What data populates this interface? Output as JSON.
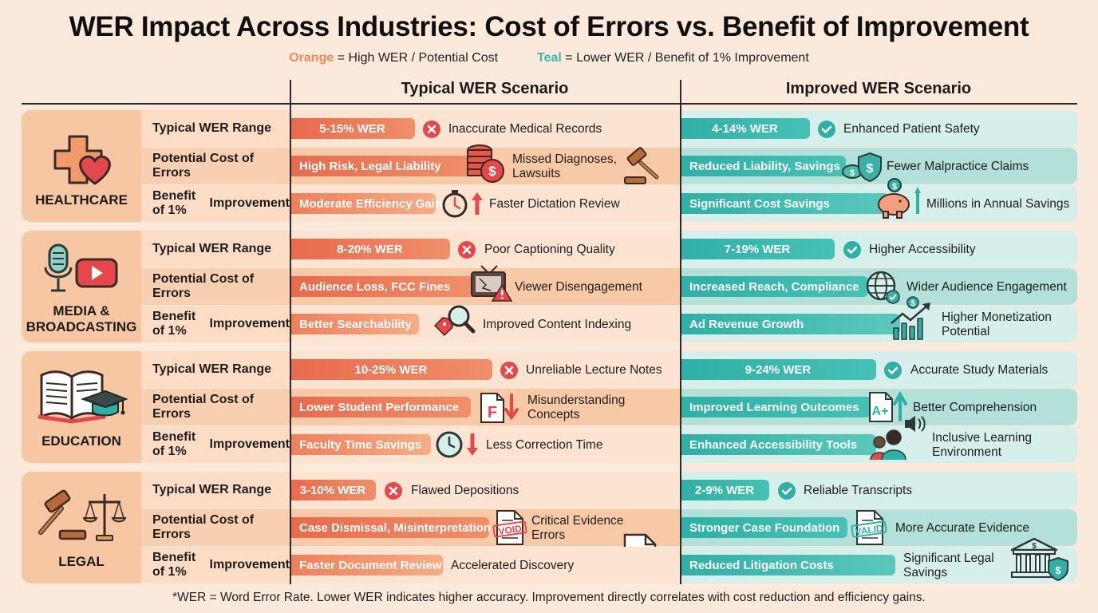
{
  "title": "WER Impact Across Industries: Cost of Errors vs. Benefit of Improvement",
  "legend": {
    "orange_key": "Orange",
    "orange_text": "= High WER / Potential Cost",
    "teal_key": "Teal",
    "teal_text": "= Lower WER / Benefit of 1% Improvement",
    "orange_color": "#ef8a5a",
    "teal_color": "#3cb7ad"
  },
  "columns": {
    "typical": "Typical WER Scenario",
    "improved": "Improved WER Scenario"
  },
  "row_labels": {
    "range": "Typical WER Range",
    "cost": "Potential Cost of Errors",
    "benefit_l1": "Benefit of 1%",
    "benefit_l2": "Improvement"
  },
  "sections": [
    {
      "name": "HEALTHCARE",
      "range": {
        "typical": "5-15% WER",
        "typical_note": "Inaccurate Medical Records",
        "improved": "4-14% WER",
        "improved_note": "Enhanced Patient Safety"
      },
      "cost": {
        "typical": "High Risk, Legal Liability",
        "typical_note_l1": "Missed Diagnoses,",
        "typical_note_l2": "Lawsuits",
        "improved": "Reduced Liability, Savings",
        "improved_note": "Fewer Malpractice Claims"
      },
      "benefit": {
        "typical": "Moderate Efficiency Gain",
        "typical_note": "Faster Dictation Review",
        "improved": "Significant Cost Savings",
        "improved_note": "Millions in Annual Savings"
      }
    },
    {
      "name_l1": "MEDIA &",
      "name_l2": "BROADCASTING",
      "range": {
        "typical": "8-20% WER",
        "typical_note": "Poor Captioning Quality",
        "improved": "7-19% WER",
        "improved_note": "Higher Accessibility"
      },
      "cost": {
        "typical": "Audience Loss, FCC Fines",
        "typical_note": "Viewer Disengagement",
        "improved": "Increased Reach, Compliance",
        "improved_note": "Wider Audience Engagement"
      },
      "benefit": {
        "typical": "Better Searchability",
        "typical_note": "Improved Content Indexing",
        "improved": "Ad Revenue Growth",
        "improved_note_l1": "Higher Monetization",
        "improved_note_l2": "Potential"
      }
    },
    {
      "name": "EDUCATION",
      "range": {
        "typical": "10-25% WER",
        "typical_note": "Unreliable Lecture Notes",
        "improved": "9-24% WER",
        "improved_note": "Accurate Study Materials"
      },
      "cost": {
        "typical": "Lower Student Performance",
        "typical_note_l1": "Misunderstanding",
        "typical_note_l2": "Concepts",
        "improved": "Improved Learning Outcomes",
        "improved_note": "Better Comprehension"
      },
      "benefit": {
        "typical": "Faculty Time Savings",
        "typical_note": "Less Correction Time",
        "improved": "Enhanced Accessibility Tools",
        "improved_note_l1": "Inclusive Learning",
        "improved_note_l2": "Environment"
      }
    },
    {
      "name": "LEGAL",
      "range": {
        "typical": "3-10% WER",
        "typical_note": "Flawed Depositions",
        "improved": "2-9% WER",
        "improved_note": "Reliable Transcripts"
      },
      "cost": {
        "typical": "Case Dismissal, Misinterpretation",
        "typical_note_l1": "Critical Evidence",
        "typical_note_l2": "Errors",
        "stamp_typical": "VOID",
        "improved": "Stronger Case Foundation",
        "improved_note": "More Accurate Evidence",
        "stamp_improved": "VALID"
      },
      "benefit": {
        "typical": "Faster Document Review",
        "typical_note": "Accelerated Discovery",
        "improved": "Reduced Litigation Costs",
        "improved_note_l1": "Significant Legal",
        "improved_note_l2": "Savings"
      }
    }
  ],
  "footnote": "*WER = Word Error Rate. Lower WER indicates higher accuracy. Improvement directly correlates with cost reduction and efficiency gains."
}
